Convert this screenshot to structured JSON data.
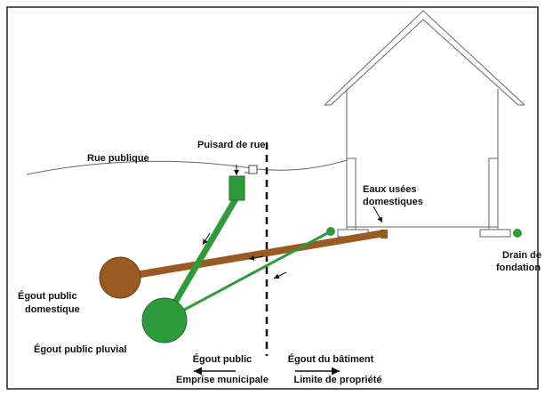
{
  "labels": {
    "rue": "Rue publique",
    "puisard": "Puisard de rue",
    "eaux_usees": [
      "Eaux usées",
      "domestiques"
    ],
    "drain": [
      "Drain de",
      "fondation"
    ],
    "egout_domestique": [
      "Égout public",
      "domestique"
    ],
    "egout_pluvial": "Égout public pluvial",
    "egout_public": "Égout public",
    "egout_batiment": "Égout du bâtiment",
    "emprise": "Emprise municipale",
    "limite": "Limite de propriété"
  }
}
